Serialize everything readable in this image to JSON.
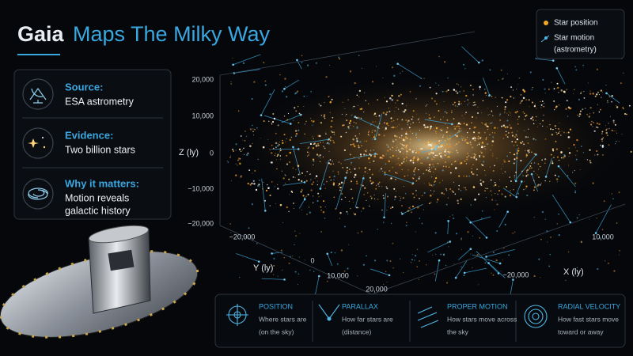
{
  "header": {
    "title_lead": "Gaia",
    "title_rest": "Maps The Milky Way"
  },
  "legend": {
    "items": [
      {
        "lines": [
          "Star position"
        ]
      },
      {
        "lines": [
          "Star motion",
          "(astrometry)"
        ]
      }
    ]
  },
  "info_cards": [
    {
      "title": "Source:",
      "lines": [
        "ESA astrometry"
      ]
    },
    {
      "title": "Evidence:",
      "lines": [
        "Two billion stars"
      ]
    },
    {
      "title": "Why it matters:",
      "lines": [
        "Motion reveals",
        "galactic history"
      ]
    }
  ],
  "plot": {
    "z_axis": {
      "label": "Z (ly)",
      "ticks": [
        "20,000",
        "10,000",
        "0",
        "−10,000",
        "−20,000"
      ]
    },
    "y_axis": {
      "label": "Y (ly)",
      "ticks": [
        "−20,000",
        "0",
        "10,000",
        "20,000"
      ]
    },
    "x_axis": {
      "label": "X (ly)",
      "ticks": [
        "10,000",
        "−20,000"
      ]
    }
  },
  "concepts": [
    {
      "title": "POSITION",
      "lines": [
        "Where stars are",
        "(on the sky)"
      ]
    },
    {
      "title": "PARALLAX",
      "lines": [
        "How far stars are",
        "(distance)"
      ]
    },
    {
      "title": "PROPER MOTION",
      "lines": [
        "How stars move across",
        "the sky"
      ]
    },
    {
      "title": "RADIAL VELOCITY",
      "lines": [
        "How fast stars move",
        "toward or away"
      ]
    }
  ]
}
